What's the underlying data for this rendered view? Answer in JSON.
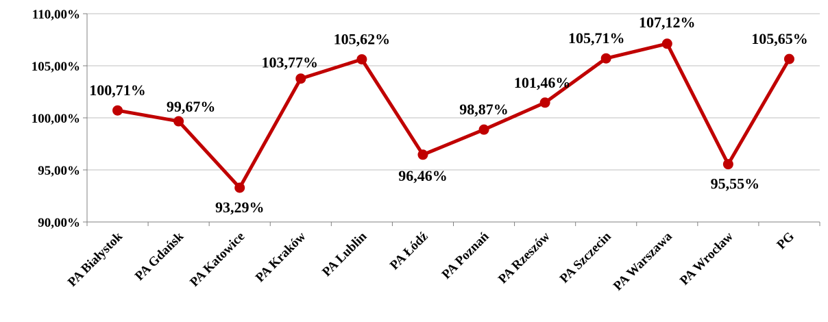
{
  "chart_data": {
    "type": "line",
    "categories": [
      "PA Białystok",
      "PA Gdańsk",
      "PA Katowice",
      "PA Kraków",
      "PA Lublin",
      "PA Łódź",
      "PA Poznań",
      "PA Rzeszów",
      "PA Szczecin",
      "PA Warszawa",
      "PA Wrocław",
      "PG"
    ],
    "series": [
      {
        "values": [
          100.71,
          99.67,
          93.29,
          103.77,
          105.62,
          96.46,
          98.87,
          101.46,
          105.71,
          107.12,
          95.55,
          105.65
        ],
        "labels": [
          "100,71%",
          "99,67%",
          "93,29%",
          "103,77%",
          "105,62%",
          "96,46%",
          "98,87%",
          "101,46%",
          "105,71%",
          "107,12%",
          "95,55%",
          "105,65%"
        ],
        "color": "#c00000"
      }
    ],
    "ylim": [
      90,
      110
    ],
    "yticks": [
      90,
      95,
      100,
      105,
      110
    ],
    "ytick_labels": [
      "90,00%",
      "95,00%",
      "100,00%",
      "105,00%",
      "110,00%"
    ],
    "grid": true,
    "gridline_color": "#bfbfbf",
    "legend": "none"
  }
}
